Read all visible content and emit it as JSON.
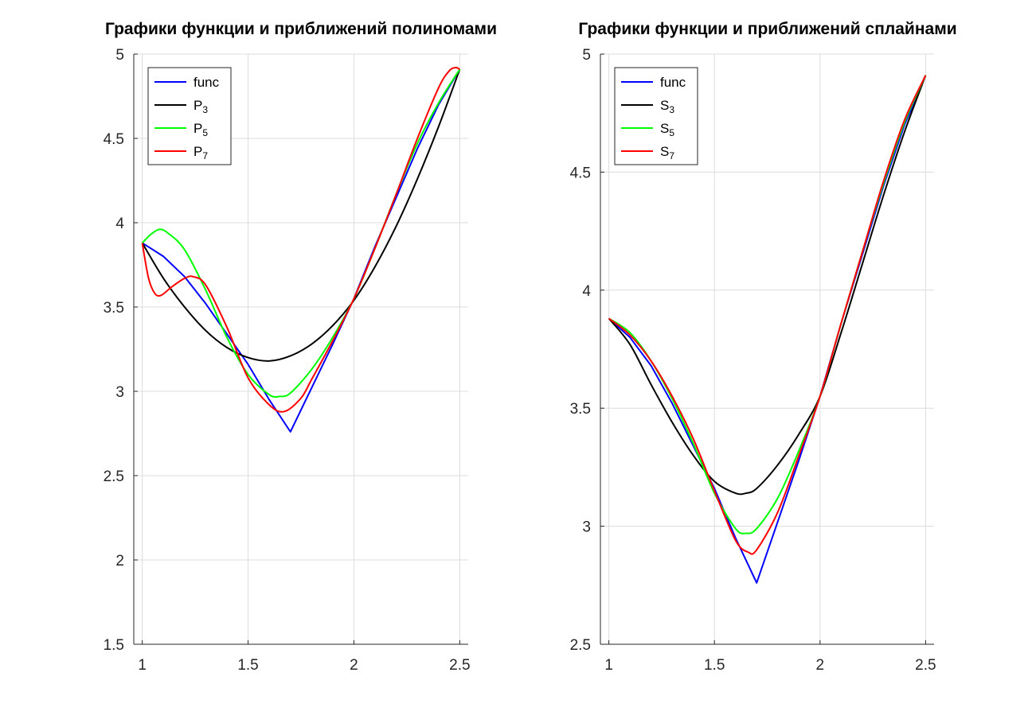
{
  "chart_data": [
    {
      "type": "line",
      "title": "Графики функции и приближений полиномами",
      "xlabel": "",
      "ylabel": "",
      "xlim": [
        0.96,
        2.54
      ],
      "ylim": [
        1.5,
        5
      ],
      "x_ticks": [
        "1",
        "1.5",
        "2",
        "2.5"
      ],
      "y_ticks": [
        "1.5",
        "2",
        "2.5",
        "3",
        "3.5",
        "4",
        "4.5",
        "5"
      ],
      "x_tick_values": [
        1,
        1.5,
        2,
        2.5
      ],
      "y_tick_values": [
        1.5,
        2,
        2.5,
        3,
        3.5,
        4,
        4.5,
        5
      ],
      "grid": true,
      "legend_position": "top-left",
      "colors": {
        "func": "#0000ff",
        "P3": "#000000",
        "P5": "#00ff00",
        "P7": "#ff0000"
      },
      "series": [
        {
          "name": "func",
          "legend_base": "func",
          "legend_sub": "",
          "color": "#0000ff",
          "x": [
            1.0,
            1.1,
            1.2,
            1.3,
            1.4,
            1.5,
            1.6,
            1.7,
            1.8,
            1.9,
            2.0,
            2.1,
            2.2,
            2.3,
            2.4,
            2.5
          ],
          "y": [
            3.88,
            3.8,
            3.68,
            3.52,
            3.34,
            3.16,
            2.95,
            2.76,
            3.02,
            3.28,
            3.55,
            3.86,
            4.15,
            4.44,
            4.7,
            4.91
          ]
        },
        {
          "name": "P3",
          "legend_base": "P",
          "legend_sub": "3",
          "color": "#000000",
          "x": [
            1.0,
            1.1,
            1.2,
            1.3,
            1.4,
            1.5,
            1.6,
            1.7,
            1.8,
            1.9,
            2.0,
            2.1,
            2.2,
            2.3,
            2.4,
            2.5
          ],
          "y": [
            3.88,
            3.67,
            3.5,
            3.36,
            3.26,
            3.2,
            3.18,
            3.21,
            3.28,
            3.39,
            3.54,
            3.74,
            3.98,
            4.26,
            4.57,
            4.91
          ]
        },
        {
          "name": "P5",
          "legend_base": "P",
          "legend_sub": "5",
          "color": "#00ff00",
          "x": [
            1.0,
            1.04,
            1.08,
            1.12,
            1.2,
            1.3,
            1.4,
            1.5,
            1.6,
            1.65,
            1.7,
            1.8,
            1.9,
            2.0,
            2.1,
            2.2,
            2.3,
            2.4,
            2.5
          ],
          "y": [
            3.88,
            3.93,
            3.96,
            3.94,
            3.84,
            3.6,
            3.32,
            3.1,
            2.98,
            2.97,
            2.99,
            3.13,
            3.32,
            3.55,
            3.85,
            4.17,
            4.47,
            4.71,
            4.91
          ]
        },
        {
          "name": "P7",
          "legend_base": "P",
          "legend_sub": "7",
          "color": "#ff0000",
          "x": [
            1.0,
            1.03,
            1.06,
            1.09,
            1.14,
            1.2,
            1.24,
            1.3,
            1.4,
            1.5,
            1.6,
            1.67,
            1.75,
            1.8,
            1.9,
            2.0,
            2.1,
            2.2,
            2.3,
            2.4,
            2.45,
            2.48,
            2.5
          ],
          "y": [
            3.88,
            3.67,
            3.58,
            3.57,
            3.62,
            3.67,
            3.68,
            3.63,
            3.38,
            3.08,
            2.92,
            2.88,
            2.96,
            3.07,
            3.3,
            3.55,
            3.85,
            4.17,
            4.5,
            4.8,
            4.9,
            4.92,
            4.91
          ]
        }
      ]
    },
    {
      "type": "line",
      "title": "Графики функции и приближений сплайнами",
      "xlabel": "",
      "ylabel": "",
      "xlim": [
        0.96,
        2.54
      ],
      "ylim": [
        2.5,
        5
      ],
      "x_ticks": [
        "1",
        "1.5",
        "2",
        "2.5"
      ],
      "y_ticks": [
        "2.5",
        "3",
        "3.5",
        "4",
        "4.5",
        "5"
      ],
      "x_tick_values": [
        1,
        1.5,
        2,
        2.5
      ],
      "y_tick_values": [
        2.5,
        3,
        3.5,
        4,
        4.5,
        5
      ],
      "grid": true,
      "legend_position": "top-left",
      "colors": {
        "func": "#0000ff",
        "S3": "#000000",
        "S5": "#00ff00",
        "S7": "#ff0000"
      },
      "series": [
        {
          "name": "func",
          "legend_base": "func",
          "legend_sub": "",
          "color": "#0000ff",
          "x": [
            1.0,
            1.1,
            1.2,
            1.3,
            1.4,
            1.5,
            1.6,
            1.7,
            1.8,
            1.9,
            2.0,
            2.1,
            2.2,
            2.3,
            2.4,
            2.5
          ],
          "y": [
            3.88,
            3.8,
            3.68,
            3.52,
            3.34,
            3.16,
            2.95,
            2.76,
            3.02,
            3.28,
            3.55,
            3.86,
            4.15,
            4.44,
            4.7,
            4.91
          ]
        },
        {
          "name": "S3",
          "legend_base": "S",
          "legend_sub": "3",
          "color": "#000000",
          "x": [
            1.0,
            1.1,
            1.2,
            1.3,
            1.4,
            1.5,
            1.6,
            1.65,
            1.7,
            1.8,
            1.9,
            2.0,
            2.1,
            2.2,
            2.3,
            2.4,
            2.5
          ],
          "y": [
            3.88,
            3.77,
            3.6,
            3.44,
            3.3,
            3.19,
            3.14,
            3.14,
            3.16,
            3.26,
            3.39,
            3.55,
            3.82,
            4.11,
            4.4,
            4.67,
            4.91
          ]
        },
        {
          "name": "S5",
          "legend_base": "S",
          "legend_sub": "5",
          "color": "#00ff00",
          "x": [
            1.0,
            1.1,
            1.2,
            1.3,
            1.4,
            1.5,
            1.6,
            1.65,
            1.7,
            1.8,
            1.9,
            2.0,
            2.1,
            2.2,
            2.3,
            2.4,
            2.5
          ],
          "y": [
            3.88,
            3.82,
            3.7,
            3.54,
            3.35,
            3.14,
            2.99,
            2.97,
            2.99,
            3.12,
            3.32,
            3.55,
            3.86,
            4.16,
            4.45,
            4.71,
            4.91
          ]
        },
        {
          "name": "S7",
          "legend_base": "S",
          "legend_sub": "7",
          "color": "#ff0000",
          "x": [
            1.0,
            1.1,
            1.2,
            1.3,
            1.4,
            1.5,
            1.6,
            1.66,
            1.7,
            1.8,
            1.9,
            2.0,
            2.1,
            2.2,
            2.3,
            2.4,
            2.5
          ],
          "y": [
            3.88,
            3.81,
            3.7,
            3.55,
            3.37,
            3.15,
            2.94,
            2.89,
            2.9,
            3.06,
            3.3,
            3.55,
            3.86,
            4.16,
            4.46,
            4.72,
            4.91
          ]
        }
      ]
    }
  ]
}
